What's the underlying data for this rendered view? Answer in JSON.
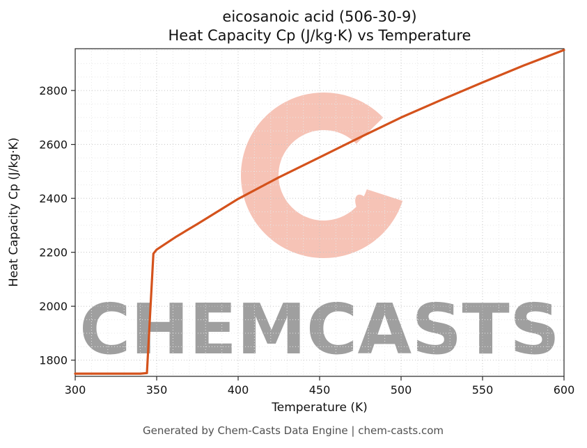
{
  "chart_data": {
    "type": "line",
    "title": "eicosanoic acid (506-30-9)",
    "subtitle": "Heat Capacity Cp (J/kg·K) vs Temperature",
    "xlabel": "Temperature (K)",
    "ylabel": "Heat Capacity Cp (J/kg·K)",
    "xlim": [
      300,
      600
    ],
    "ylim": [
      1740,
      2955
    ],
    "xticks": [
      300,
      350,
      400,
      450,
      500,
      550,
      600
    ],
    "yticks": [
      1800,
      2000,
      2200,
      2400,
      2600,
      2800
    ],
    "x_minor_step": 10,
    "y_minor_step": 50,
    "grid": true,
    "legend": "none",
    "line_color": "#d4521c",
    "series": [
      {
        "name": "Heat Capacity Cp (J/kg·K)",
        "x": [
          300,
          320,
          340,
          344,
          348,
          350,
          362,
          375,
          400,
          425,
          450,
          475,
          500,
          525,
          550,
          575,
          600
        ],
        "y": [
          1750,
          1750,
          1750,
          1752,
          2195,
          2210,
          2258,
          2305,
          2398,
          2478,
          2552,
          2627,
          2700,
          2766,
          2830,
          2892,
          2950
        ]
      }
    ]
  },
  "watermark": {
    "text": "CHEMCASTS",
    "color": "#e8694a"
  },
  "footer": {
    "text": "Generated by Chem-Casts Data Engine | chem-casts.com"
  }
}
